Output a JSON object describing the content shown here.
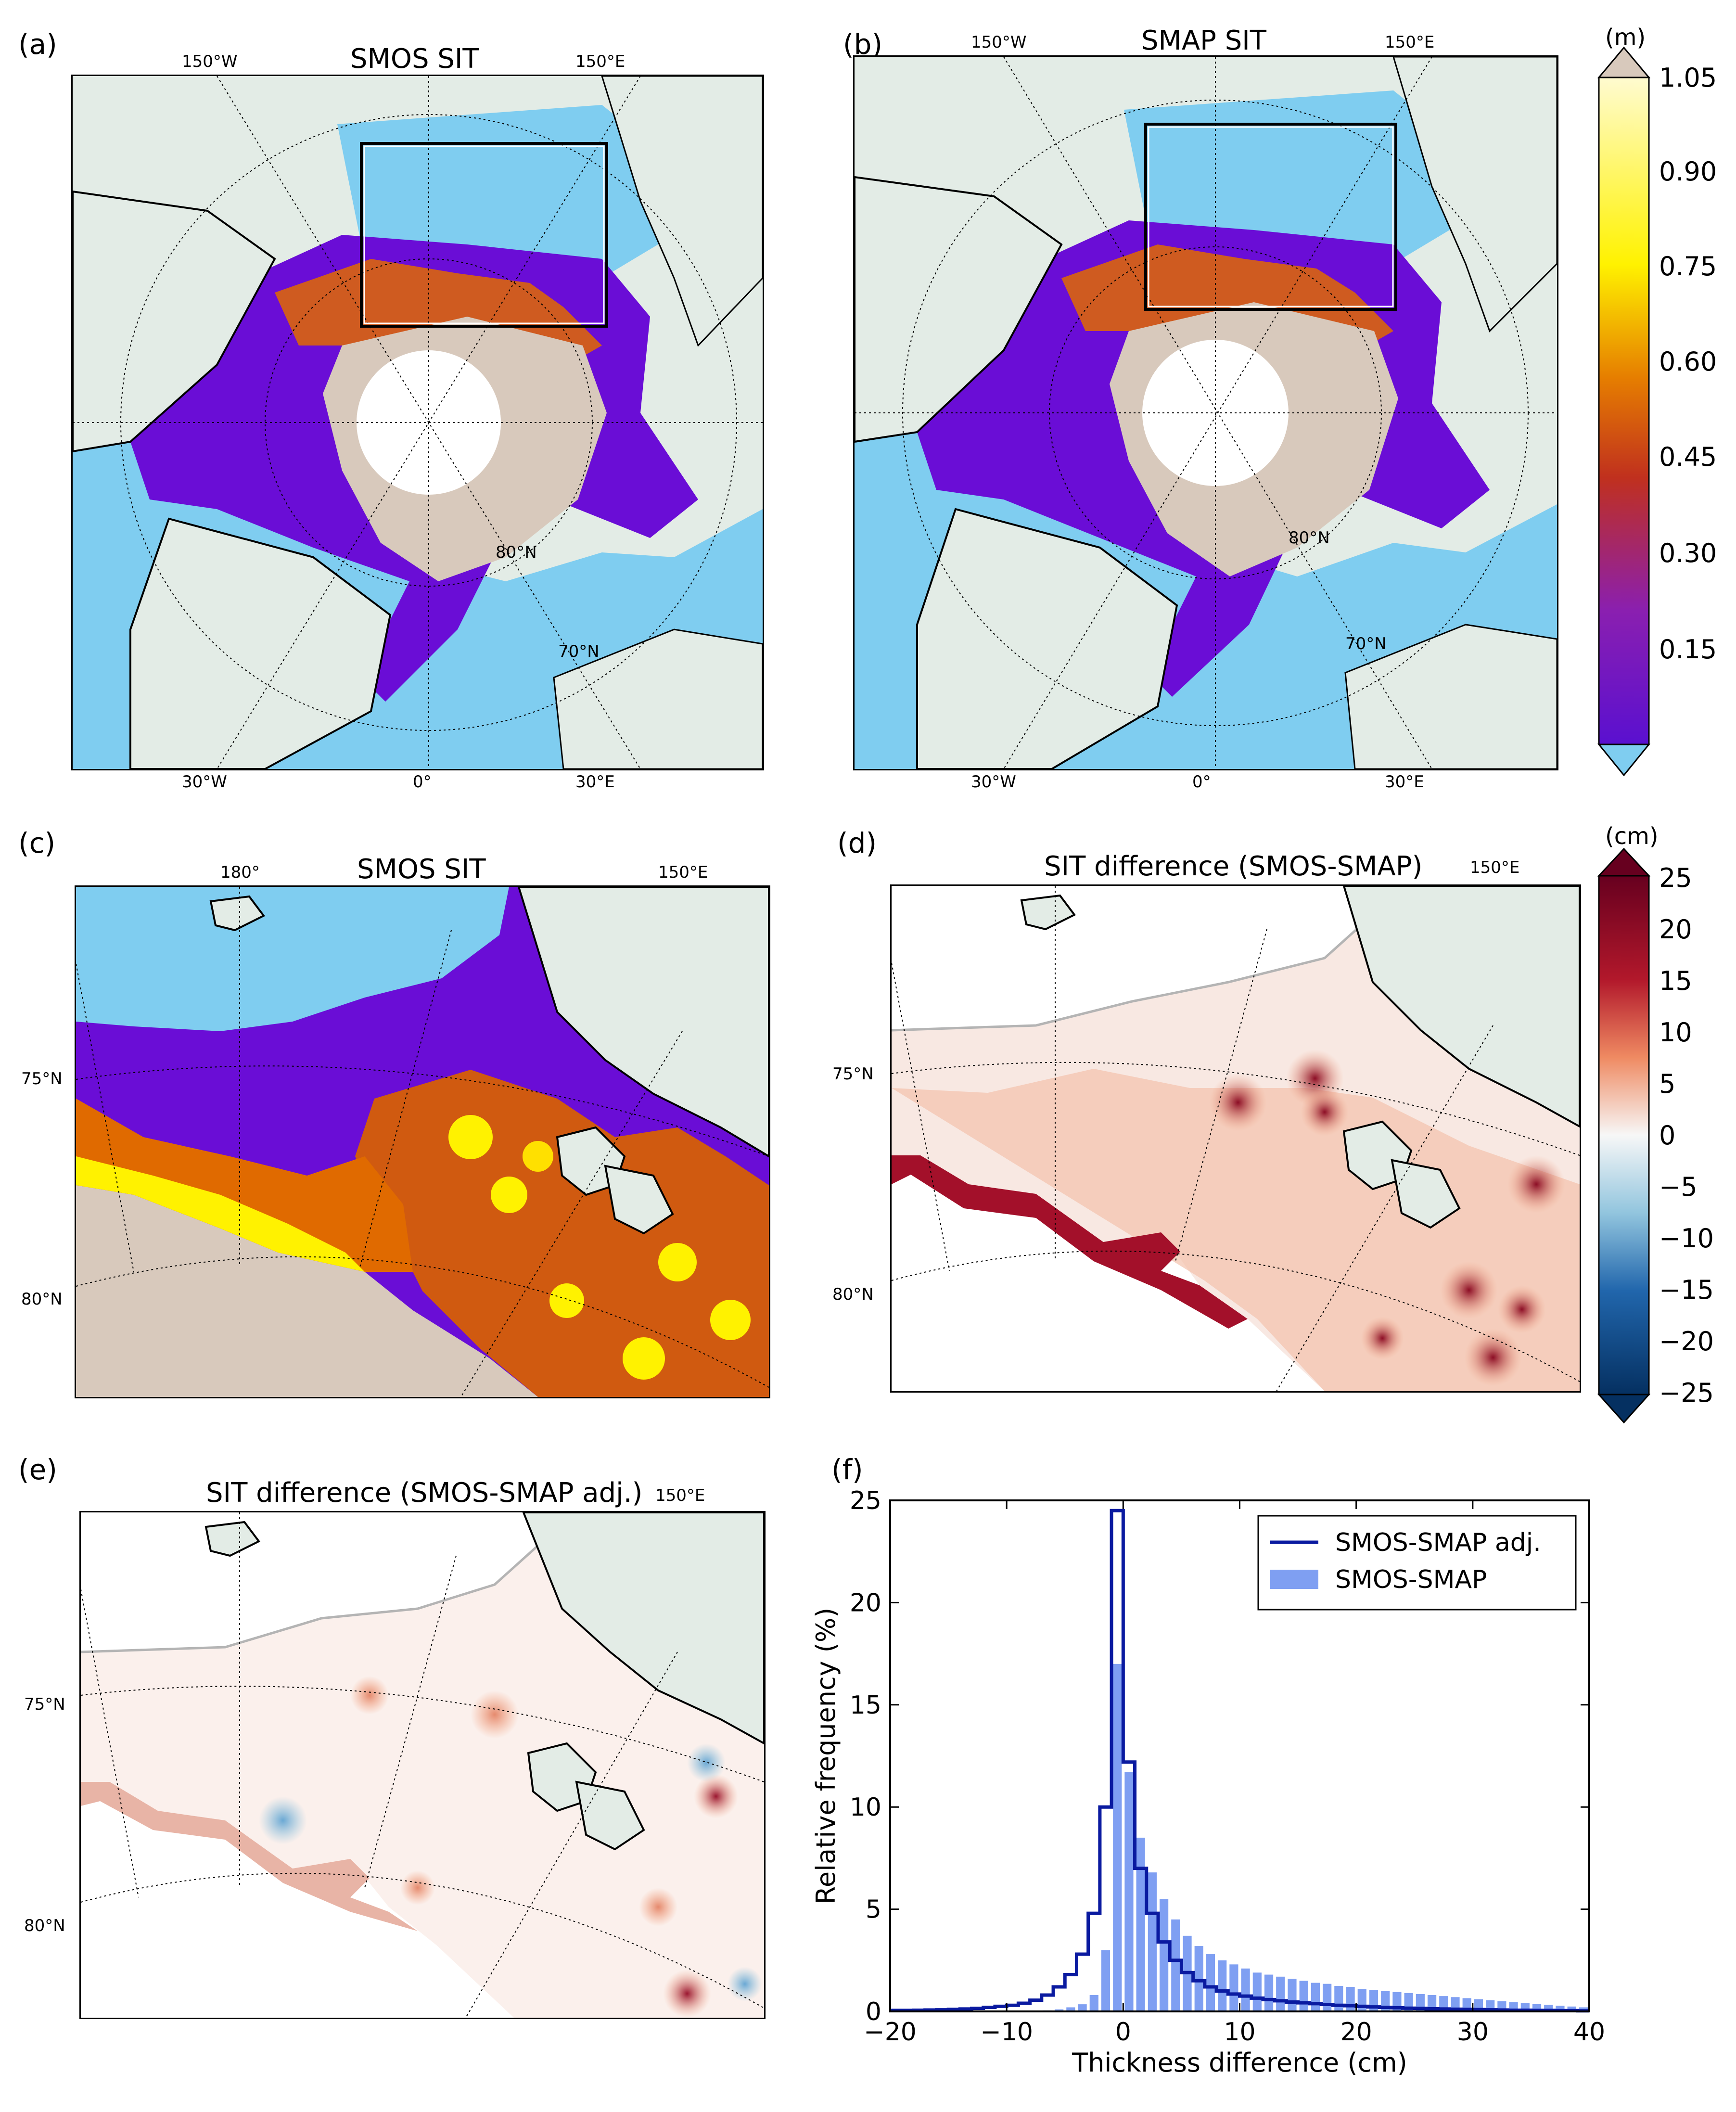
{
  "panels": {
    "a": {
      "letter": "(a)",
      "title": "SMOS SIT",
      "lon_top": [
        "150°W",
        "150°E"
      ],
      "lon_bottom": [
        "30°W",
        "0°",
        "30°E"
      ],
      "lat": [
        "80°N",
        "70°N"
      ]
    },
    "b": {
      "letter": "(b)",
      "title": "SMAP SIT",
      "lon_top": [
        "150°W",
        "150°E"
      ],
      "lon_bottom": [
        "30°W",
        "0°",
        "30°E"
      ],
      "lat": [
        "80°N",
        "70°N"
      ]
    },
    "c": {
      "letter": "(c)",
      "title": "SMOS SIT",
      "lon_top": [
        "180°",
        "150°E"
      ],
      "lat": [
        "75°N",
        "80°N"
      ]
    },
    "d": {
      "letter": "(d)",
      "title": "SIT difference (SMOS-SMAP)",
      "lon_top": [
        "150°E"
      ],
      "lat": [
        "75°N",
        "80°N"
      ]
    },
    "e": {
      "letter": "(e)",
      "title": "SIT difference (SMOS-SMAP adj.)",
      "lon_top": [
        "150°E"
      ],
      "lat": [
        "75°N",
        "80°N"
      ]
    },
    "f": {
      "letter": "(f)"
    }
  },
  "colorbar_sit": {
    "unit": "(m)",
    "ticks": [
      "1.05",
      "0.90",
      "0.75",
      "0.60",
      "0.45",
      "0.30",
      "0.15"
    ],
    "colors": {
      "low": "#7fcdf0",
      "purple": "#6a0dd6",
      "violet": "#8a1fb0",
      "red": "#c0301e",
      "orange": "#e67e00",
      "yellow": "#fff200",
      "pale": "#fffbd0",
      "high": "#d8c9bc"
    }
  },
  "colorbar_diff": {
    "unit": "(cm)",
    "ticks": [
      "25",
      "20",
      "15",
      "10",
      "5",
      "0",
      "−5",
      "−10",
      "−15",
      "−20",
      "−25"
    ],
    "colors": {
      "max": "#67001f",
      "pos": "#d6604d",
      "zero": "#f7f7f7",
      "neg": "#4393c3",
      "min": "#053061"
    }
  },
  "chart_data": {
    "type": "bar",
    "title": "",
    "xlabel": "Thickness difference (cm)",
    "ylabel": "Relative frequency (%)",
    "xlim": [
      -20,
      40
    ],
    "ylim": [
      0,
      25
    ],
    "xticks": [
      "−20",
      "−10",
      "0",
      "10",
      "20",
      "30",
      "40"
    ],
    "yticks": [
      "0",
      "5",
      "10",
      "15",
      "20",
      "25"
    ],
    "bin_width": 1,
    "legend_position": "top-right",
    "series": [
      {
        "name": "SMOS-SMAP adj.",
        "style": "step",
        "color": "#0a1aa0",
        "bin_edges_start": -20,
        "values": [
          0.05,
          0.05,
          0.06,
          0.07,
          0.08,
          0.1,
          0.12,
          0.15,
          0.2,
          0.25,
          0.3,
          0.4,
          0.55,
          0.8,
          1.2,
          1.8,
          2.8,
          4.8,
          10.0,
          24.5,
          12.2,
          7.0,
          4.8,
          3.4,
          2.5,
          1.9,
          1.5,
          1.2,
          1.0,
          0.85,
          0.75,
          0.65,
          0.58,
          0.52,
          0.46,
          0.42,
          0.38,
          0.34,
          0.3,
          0.28,
          0.25,
          0.22,
          0.2,
          0.18,
          0.16,
          0.15,
          0.13,
          0.12,
          0.11,
          0.1,
          0.09,
          0.08,
          0.07,
          0.06,
          0.06,
          0.05,
          0.05,
          0.04,
          0.04,
          0.03
        ]
      },
      {
        "name": "SMOS-SMAP",
        "style": "bar",
        "color": "#7f9ff2",
        "bin_edges_start": -20,
        "values": [
          0.0,
          0.0,
          0.0,
          0.0,
          0.0,
          0.0,
          0.0,
          0.0,
          0.0,
          0.0,
          0.0,
          0.0,
          0.0,
          0.05,
          0.1,
          0.2,
          0.35,
          0.8,
          3.0,
          17.0,
          11.7,
          8.5,
          6.8,
          5.5,
          4.5,
          3.7,
          3.2,
          2.8,
          2.5,
          2.3,
          2.1,
          1.9,
          1.8,
          1.7,
          1.6,
          1.5,
          1.4,
          1.35,
          1.25,
          1.2,
          1.1,
          1.05,
          1.0,
          0.95,
          0.9,
          0.85,
          0.8,
          0.75,
          0.7,
          0.65,
          0.6,
          0.55,
          0.5,
          0.45,
          0.4,
          0.36,
          0.32,
          0.28,
          0.24,
          0.2
        ]
      }
    ]
  }
}
